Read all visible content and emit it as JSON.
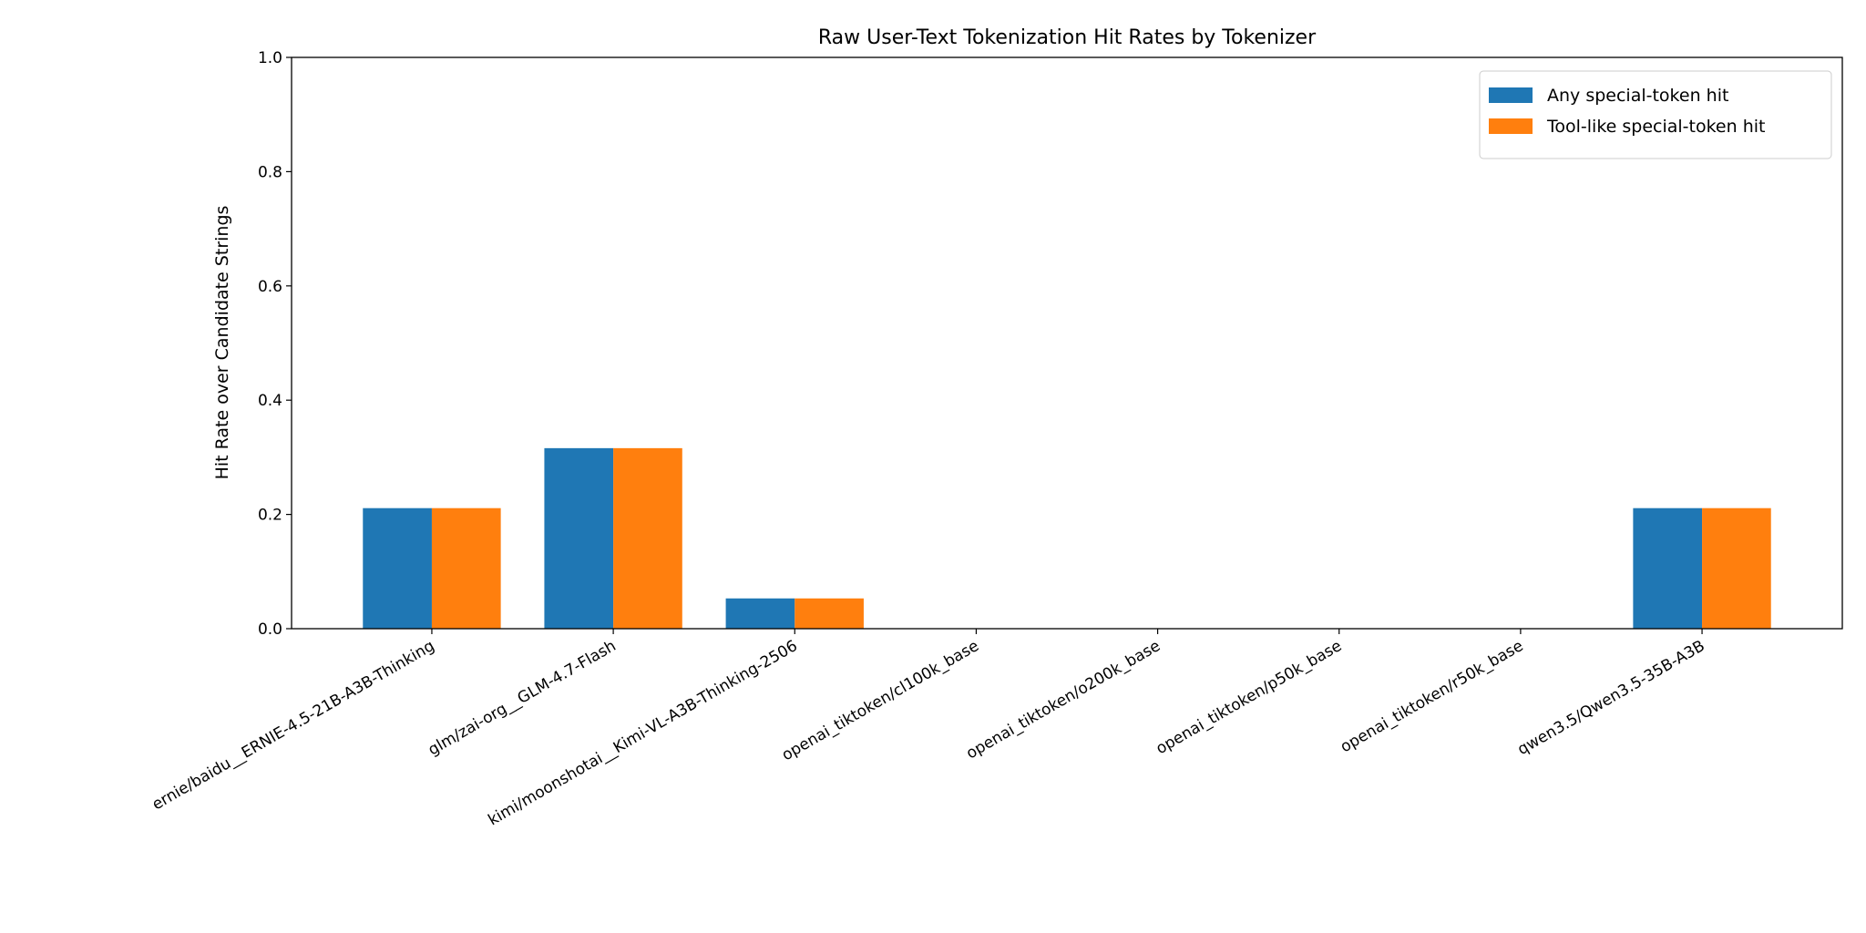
{
  "chart_data": {
    "type": "bar",
    "title": "Raw User-Text Tokenization Hit Rates by Tokenizer",
    "ylabel": "Hit Rate over Candidate Strings",
    "categories": [
      "ernie/baidu__ERNIE-4.5-21B-A3B-Thinking",
      "glm/zai-org__GLM-4.7-Flash",
      "kimi/moonshotai__Kimi-VL-A3B-Thinking-2506",
      "openai_tiktoken/cl100k_base",
      "openai_tiktoken/o200k_base",
      "openai_tiktoken/p50k_base",
      "openai_tiktoken/r50k_base",
      "qwen3.5/Qwen3.5-35B-A3B"
    ],
    "series": [
      {
        "name": "Any special-token hit",
        "color": "#1f77b4",
        "values": [
          0.211,
          0.316,
          0.053,
          0,
          0,
          0,
          0,
          0.211
        ]
      },
      {
        "name": "Tool-like special-token hit",
        "color": "#ff7f0e",
        "values": [
          0.211,
          0.316,
          0.053,
          0,
          0,
          0,
          0,
          0.211
        ]
      }
    ],
    "ylim": [
      0,
      1
    ],
    "yticks": [
      {
        "value": 0,
        "label": "0.0"
      },
      {
        "value": 0.2,
        "label": "0.2"
      },
      {
        "value": 0.4,
        "label": "0.4"
      },
      {
        "value": 0.6,
        "label": "0.6"
      },
      {
        "value": 0.8,
        "label": "0.8"
      },
      {
        "value": 1,
        "label": "1.0"
      }
    ],
    "legend": "upper right"
  }
}
